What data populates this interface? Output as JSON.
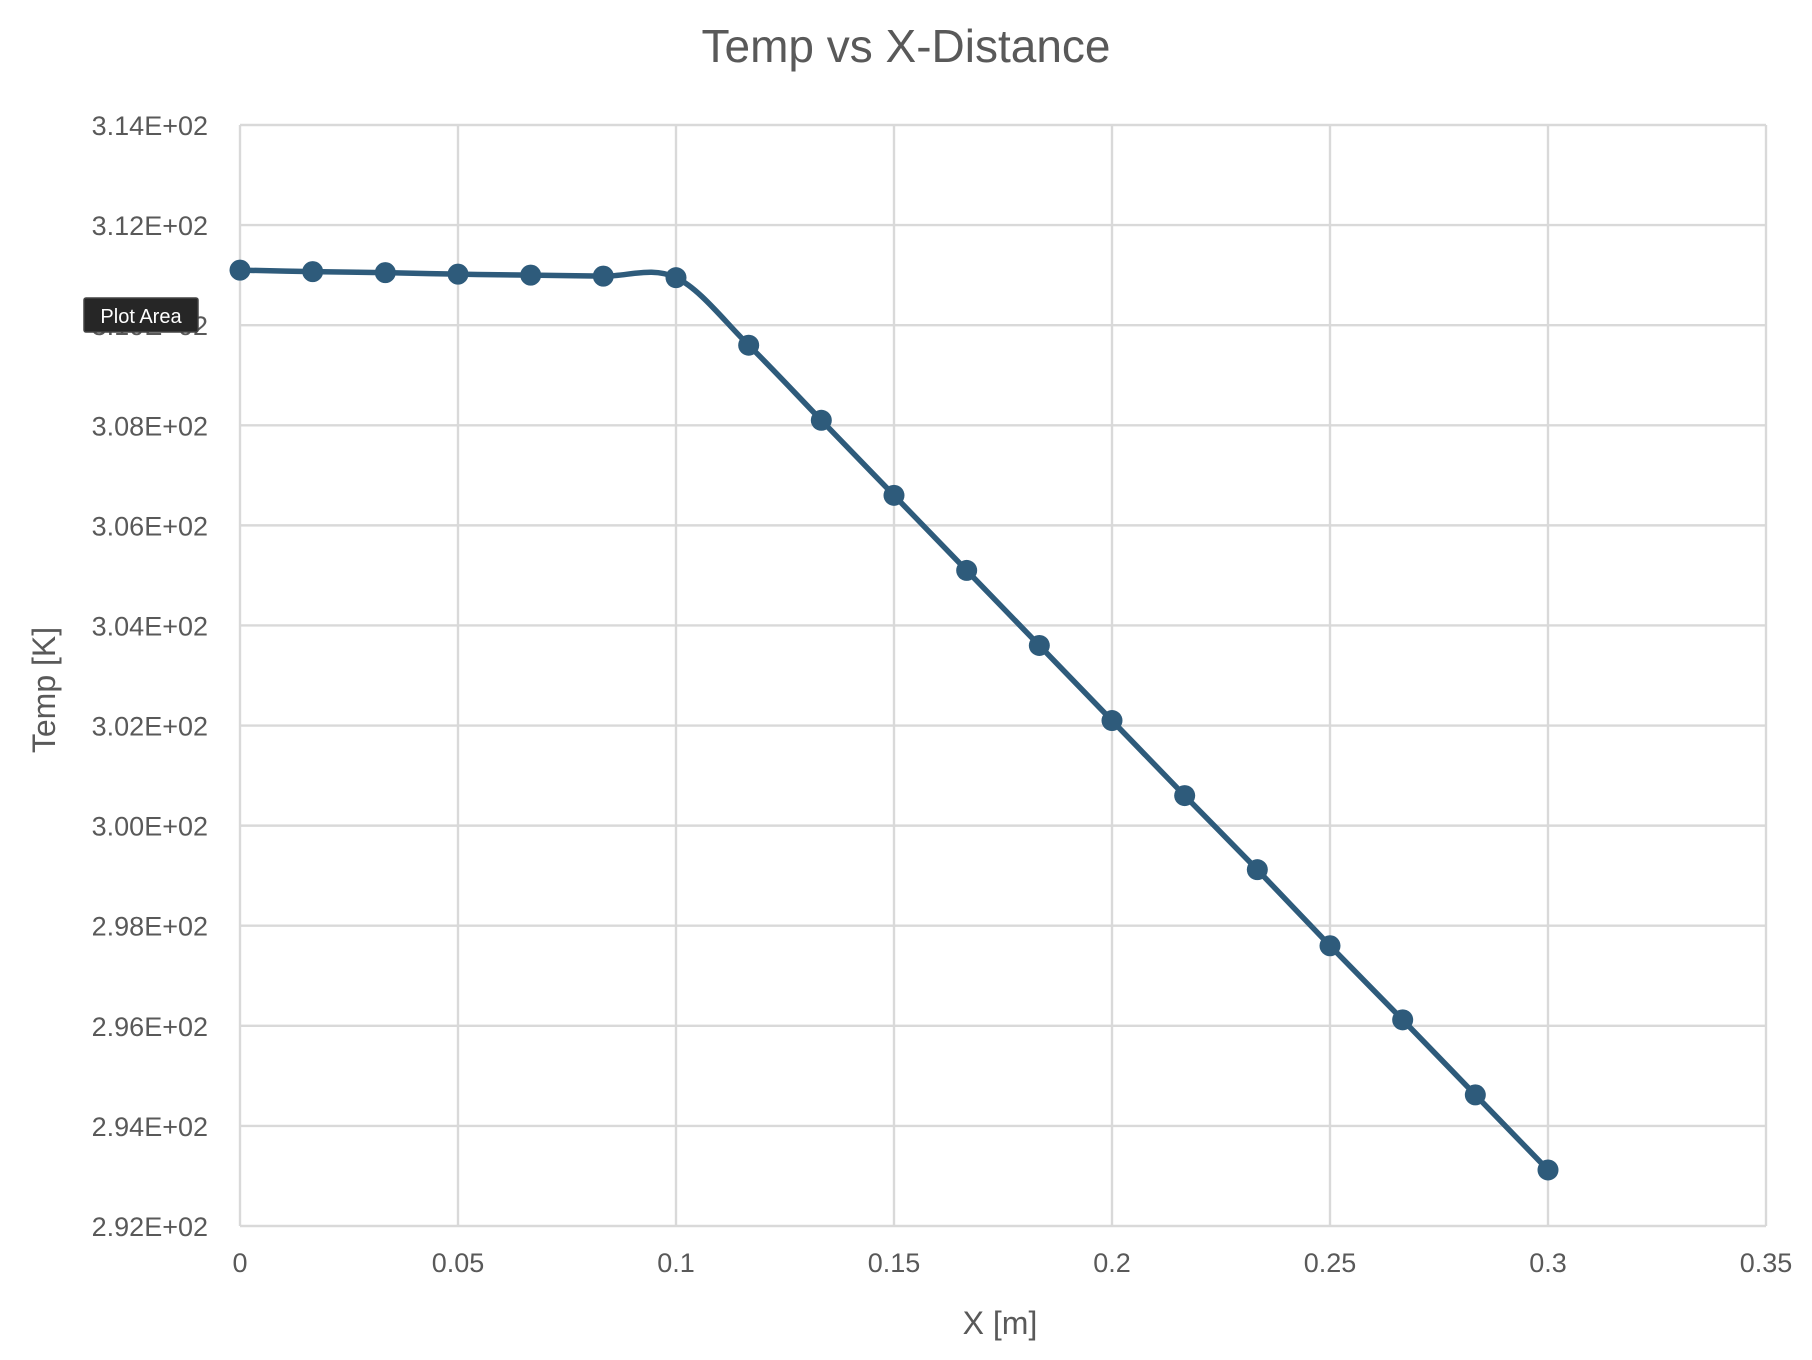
{
  "chart_data": {
    "type": "line",
    "title": "Temp vs X-Distance",
    "xlabel": "X [m]",
    "ylabel": "Temp [K]",
    "xlim": [
      0,
      0.35
    ],
    "ylim": [
      292,
      314
    ],
    "x_ticks": [
      0,
      0.05,
      0.1,
      0.15,
      0.2,
      0.25,
      0.3,
      0.35
    ],
    "x_tick_labels": [
      "0",
      "0.05",
      "0.1",
      "0.15",
      "0.2",
      "0.25",
      "0.3",
      "0.35"
    ],
    "y_ticks": [
      292,
      294,
      296,
      298,
      300,
      302,
      304,
      306,
      308,
      310,
      312,
      314
    ],
    "y_tick_labels": [
      "2.92E+02",
      "2.94E+02",
      "2.96E+02",
      "2.98E+02",
      "3.00E+02",
      "3.02E+02",
      "3.04E+02",
      "3.06E+02",
      "3.08E+02",
      "3.10E+02",
      "3.12E+02",
      "3.14E+02"
    ],
    "grid": true,
    "legend": "none",
    "smoothed": true,
    "series": [
      {
        "color": "#2e5b7b",
        "marker": "circle",
        "x": [
          0,
          0.01667,
          0.03333,
          0.05,
          0.06667,
          0.08333,
          0.1,
          0.11667,
          0.13333,
          0.15,
          0.16667,
          0.18333,
          0.2,
          0.21667,
          0.23333,
          0.25,
          0.26667,
          0.28333,
          0.3
        ],
        "y": [
          311.1,
          311.07,
          311.05,
          311.02,
          311.0,
          310.98,
          310.95,
          309.6,
          308.1,
          306.6,
          305.1,
          303.6,
          302.1,
          300.6,
          299.12,
          297.6,
          296.12,
          294.62,
          293.12
        ]
      }
    ]
  },
  "tooltip": {
    "label": "Plot Area"
  }
}
